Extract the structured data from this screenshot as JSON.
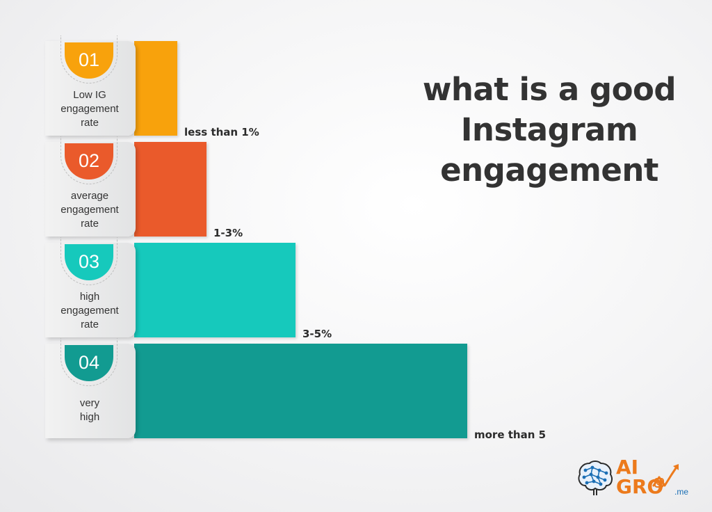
{
  "chart_data": {
    "type": "bar",
    "orientation": "horizontal",
    "title": "what is a good Instagram engagement",
    "title_lines": [
      "what is a good",
      "Instagram",
      "engagement"
    ],
    "categories": [
      {
        "number": "01",
        "label_lines": [
          "Low IG",
          "engagement",
          "rate"
        ],
        "value_label": "less than 1%",
        "color": "#f8a20c"
      },
      {
        "number": "02",
        "label_lines": [
          "average",
          "engagement",
          "rate"
        ],
        "value_label": "1-3%",
        "color": "#ea5a2b"
      },
      {
        "number": "03",
        "label_lines": [
          "high",
          "engagement",
          "rate"
        ],
        "value_label": "3-5%",
        "color": "#16c9bc"
      },
      {
        "number": "04",
        "label_lines": [
          "very",
          "high"
        ],
        "value_label": "more than 5",
        "color": "#129b91"
      }
    ],
    "values": [
      1,
      3,
      5,
      10
    ],
    "grid": false,
    "legend": "none"
  },
  "logo": {
    "line1": "AI",
    "line2": "GRO",
    "suffix": ".me",
    "accent_color": "#ec7a1c",
    "secondary_color": "#1b6fb5"
  }
}
